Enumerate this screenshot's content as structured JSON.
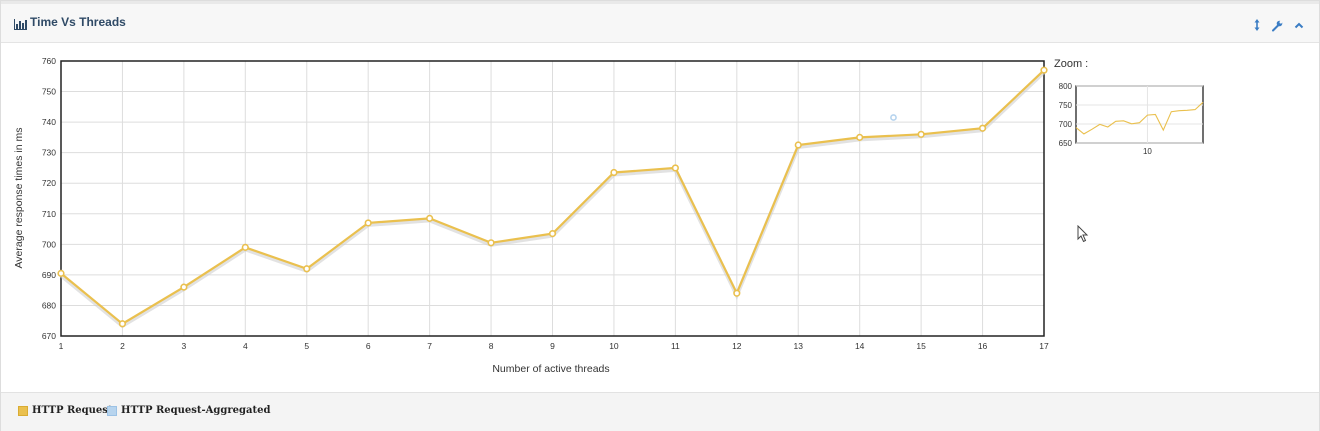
{
  "panel": {
    "title": "Time Vs Threads",
    "icons": [
      "sort-arrows-icon",
      "wrench-icon",
      "chevron-up-icon"
    ]
  },
  "zoom": {
    "label": "Zoom :",
    "y_ticks": [
      800,
      750,
      700,
      650
    ],
    "x_tick": "10"
  },
  "colors": {
    "http_request": "#eac04e",
    "http_request_aggregated": "#b7d4ee",
    "axis": "#222222",
    "grid": "#dddddd"
  },
  "chart_data": {
    "type": "line",
    "xlabel": "Number of active threads",
    "ylabel": "Average response times in ms",
    "x": [
      1,
      2,
      3,
      4,
      5,
      6,
      7,
      8,
      9,
      10,
      11,
      12,
      13,
      14,
      15,
      16,
      17
    ],
    "xlim": [
      1,
      17
    ],
    "ylim": [
      670,
      760
    ],
    "y_ticks": [
      670,
      680,
      690,
      700,
      710,
      720,
      730,
      740,
      750,
      760
    ],
    "grid": true,
    "legend_position": "bottom-left",
    "series": [
      {
        "name": "HTTP Request",
        "values": [
          690.5,
          674,
          686,
          699,
          692,
          707,
          708.5,
          700.5,
          703.5,
          723.5,
          725,
          684,
          732.5,
          735,
          736,
          738,
          757
        ]
      },
      {
        "name": "HTTP Request-Aggregated",
        "x": [
          14.55
        ],
        "values": [
          741.5
        ]
      }
    ]
  },
  "legend": {
    "items": [
      "HTTP Request",
      "HTTP Request-Aggregated"
    ]
  }
}
